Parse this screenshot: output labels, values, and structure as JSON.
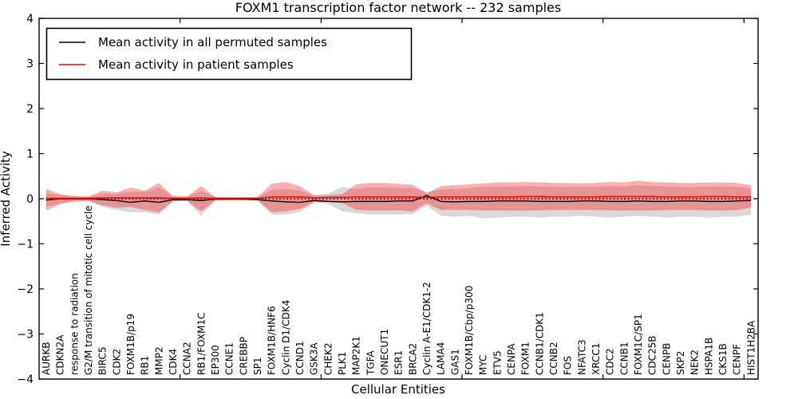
{
  "title": "FOXM1 transcription factor network -- 232 samples",
  "legend": {
    "position": "upper-left",
    "entries": [
      {
        "label": "Mean activity in all permuted samples",
        "color": "#000000"
      },
      {
        "label": "Mean activity in patient samples",
        "color": "#ff0000"
      }
    ]
  },
  "colors": {
    "patient_line": "#ff0000",
    "permuted_line": "#000000",
    "patient_band": "rgba(255,0,0,0.32)",
    "permuted_band": "rgba(128,128,128,0.30)",
    "frame": "#000000"
  },
  "chart_data": {
    "type": "area",
    "title": "FOXM1 transcription factor network -- 232 samples",
    "xlabel": "Cellular Entities",
    "ylabel": "Inferred Activity",
    "ylim": [
      -4,
      4
    ],
    "yticks": [
      -4,
      -3,
      -2,
      -1,
      0,
      1,
      2,
      3,
      4
    ],
    "xticks": [
      10,
      20,
      30,
      40,
      50
    ],
    "grid": false,
    "zero_line": "dotted",
    "legend_position": "upper-left",
    "categories": [
      "AURKB",
      "CDKN2A",
      "response to radiation",
      "G2/M transition of mitotic cell cycle",
      "BIRC5",
      "CDK2",
      "FOXM1B/p19",
      "RB1",
      "MMP2",
      "CDK4",
      "CCNA2",
      "RB1/FOXM1C",
      "EP300",
      "CCNE1",
      "CREBBP",
      "SP1",
      "FOXM1B/HNF6",
      "Cyclin D1/CDK4",
      "CCND1",
      "GSK3A",
      "CHEK2",
      "PLK1",
      "MAP2K1",
      "TGFA",
      "ONECUT1",
      "ESR1",
      "BRCA2",
      "Cyclin A-E1/CDK1-2",
      "LAMA4",
      "GAS1",
      "FOXM1B/Cbp/p300",
      "MYC",
      "ETV5",
      "CENPA",
      "FOXM1",
      "CCNB1/CDK1",
      "CCNB2",
      "FOS",
      "NFATC3",
      "XRCC1",
      "CDC2",
      "CCNB1",
      "FOXM1C/SP1",
      "CDC25B",
      "CENPB",
      "SKP2",
      "NEK2",
      "HSPA1B",
      "CKS1B",
      "CENPF",
      "HIST1H2BA"
    ],
    "series": [
      {
        "name": "Mean activity in all permuted samples",
        "kind": "line",
        "color": "#000000",
        "values": [
          -0.03,
          0.0,
          0.0,
          0.0,
          -0.02,
          -0.04,
          -0.08,
          -0.05,
          -0.08,
          -0.02,
          -0.02,
          -0.04,
          -0.01,
          -0.01,
          -0.01,
          -0.02,
          -0.05,
          -0.07,
          -0.08,
          -0.04,
          -0.06,
          -0.07,
          -0.06,
          -0.06,
          -0.06,
          -0.05,
          -0.05,
          0.07,
          -0.06,
          -0.07,
          -0.06,
          -0.06,
          -0.05,
          -0.05,
          -0.05,
          -0.06,
          -0.06,
          -0.06,
          -0.05,
          -0.05,
          -0.06,
          -0.06,
          -0.05,
          -0.06,
          -0.06,
          -0.05,
          -0.05,
          -0.06,
          -0.06,
          -0.05,
          -0.04
        ]
      },
      {
        "name": "Mean activity in patient samples",
        "kind": "line",
        "color": "#ff0000",
        "values": [
          0.01,
          0.01,
          0.01,
          0.01,
          0.02,
          0.02,
          0.02,
          0.02,
          0.02,
          0.01,
          0.01,
          0.02,
          0.01,
          0.01,
          0.01,
          0.01,
          0.04,
          0.04,
          0.04,
          0.02,
          0.03,
          0.03,
          0.04,
          0.04,
          0.04,
          0.04,
          0.04,
          0.03,
          0.04,
          0.04,
          0.04,
          0.04,
          0.04,
          0.04,
          0.05,
          0.05,
          0.04,
          0.04,
          0.04,
          0.04,
          0.05,
          0.05,
          0.05,
          0.05,
          0.04,
          0.04,
          0.04,
          0.05,
          0.05,
          0.04,
          0.04
        ]
      },
      {
        "name": "permuted-band",
        "kind": "band",
        "color": "rgba(128,128,128,0.30)",
        "upper": [
          0.12,
          0.08,
          0.05,
          0.04,
          0.12,
          0.1,
          0.15,
          0.15,
          0.25,
          0.05,
          0.04,
          0.18,
          0.03,
          0.03,
          0.03,
          0.03,
          0.2,
          0.22,
          0.18,
          0.07,
          0.12,
          0.26,
          0.22,
          0.25,
          0.25,
          0.24,
          0.23,
          0.15,
          0.2,
          0.22,
          0.24,
          0.26,
          0.27,
          0.27,
          0.28,
          0.27,
          0.26,
          0.26,
          0.26,
          0.26,
          0.28,
          0.27,
          0.3,
          0.28,
          0.27,
          0.26,
          0.26,
          0.27,
          0.27,
          0.26,
          0.22
        ],
        "lower": [
          -0.18,
          -0.1,
          -0.05,
          -0.04,
          -0.18,
          -0.25,
          -0.3,
          -0.3,
          -0.35,
          -0.05,
          -0.04,
          -0.38,
          -0.03,
          -0.03,
          -0.03,
          -0.03,
          -0.35,
          -0.35,
          -0.3,
          -0.07,
          -0.12,
          -0.28,
          -0.32,
          -0.35,
          -0.35,
          -0.35,
          -0.34,
          -0.15,
          -0.38,
          -0.4,
          -0.38,
          -0.44,
          -0.42,
          -0.4,
          -0.4,
          -0.42,
          -0.4,
          -0.4,
          -0.38,
          -0.4,
          -0.42,
          -0.4,
          -0.38,
          -0.4,
          -0.42,
          -0.4,
          -0.4,
          -0.42,
          -0.4,
          -0.4,
          -0.35
        ]
      },
      {
        "name": "patient-band",
        "kind": "band",
        "color": "rgba(255,0,0,0.32)",
        "upper": [
          0.22,
          0.1,
          0.06,
          0.05,
          0.18,
          0.14,
          0.25,
          0.18,
          0.35,
          0.06,
          0.05,
          0.28,
          0.04,
          0.03,
          0.03,
          0.04,
          0.33,
          0.37,
          0.28,
          0.08,
          0.07,
          0.1,
          0.32,
          0.35,
          0.35,
          0.33,
          0.31,
          0.12,
          0.28,
          0.3,
          0.32,
          0.34,
          0.36,
          0.36,
          0.37,
          0.36,
          0.35,
          0.35,
          0.34,
          0.35,
          0.37,
          0.36,
          0.4,
          0.37,
          0.36,
          0.35,
          0.35,
          0.36,
          0.36,
          0.35,
          0.3
        ],
        "lower": [
          -0.26,
          -0.12,
          -0.06,
          -0.05,
          -0.15,
          -0.2,
          -0.18,
          -0.25,
          -0.3,
          -0.06,
          -0.05,
          -0.28,
          -0.04,
          -0.03,
          -0.03,
          -0.04,
          -0.3,
          -0.28,
          -0.23,
          -0.08,
          -0.07,
          -0.1,
          -0.25,
          -0.26,
          -0.26,
          -0.26,
          -0.28,
          -0.1,
          -0.25,
          -0.25,
          -0.25,
          -0.26,
          -0.26,
          -0.26,
          -0.26,
          -0.26,
          -0.25,
          -0.25,
          -0.25,
          -0.25,
          -0.26,
          -0.26,
          -0.26,
          -0.26,
          -0.25,
          -0.25,
          -0.25,
          -0.26,
          -0.26,
          -0.25,
          -0.2
        ]
      }
    ]
  }
}
